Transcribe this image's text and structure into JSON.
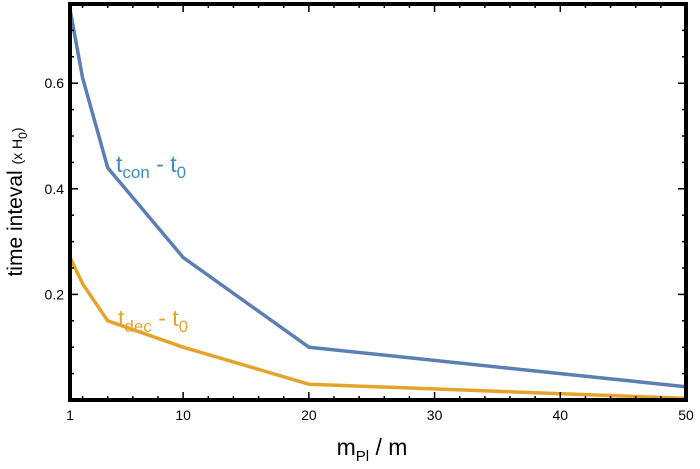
{
  "chart_data": {
    "type": "line",
    "xlim": [
      1,
      50
    ],
    "ylim": [
      0,
      0.75
    ],
    "x_ticks": [
      "1",
      "10",
      "20",
      "30",
      "40",
      "50"
    ],
    "y_ticks": [
      "0.2",
      "0.4",
      "0.6"
    ],
    "xlabel": {
      "main": "m",
      "sub": "Pl",
      "rest": " / m"
    },
    "ylabel": {
      "main": "time inteval ",
      "small": "(x H",
      "sub": "0",
      "close": ")"
    },
    "grid": false,
    "colors": {
      "con": "#5b7fb3",
      "dec": "#e4a42c"
    },
    "series": [
      {
        "label": {
          "base": "t",
          "sub1": "con",
          "mid": " - t",
          "sub2": "0"
        },
        "color": "#5b7fb3",
        "x": [
          1,
          2,
          4,
          10,
          20,
          50
        ],
        "y": [
          0.74,
          0.61,
          0.44,
          0.27,
          0.1,
          0.025
        ]
      },
      {
        "label": {
          "base": "t",
          "sub1": "dec",
          "mid": " - t",
          "sub2": "0"
        },
        "color": "#e4a42c",
        "x": [
          1,
          2,
          4,
          10,
          20,
          50
        ],
        "y": [
          0.27,
          0.22,
          0.15,
          0.1,
          0.03,
          0.003
        ]
      }
    ]
  }
}
